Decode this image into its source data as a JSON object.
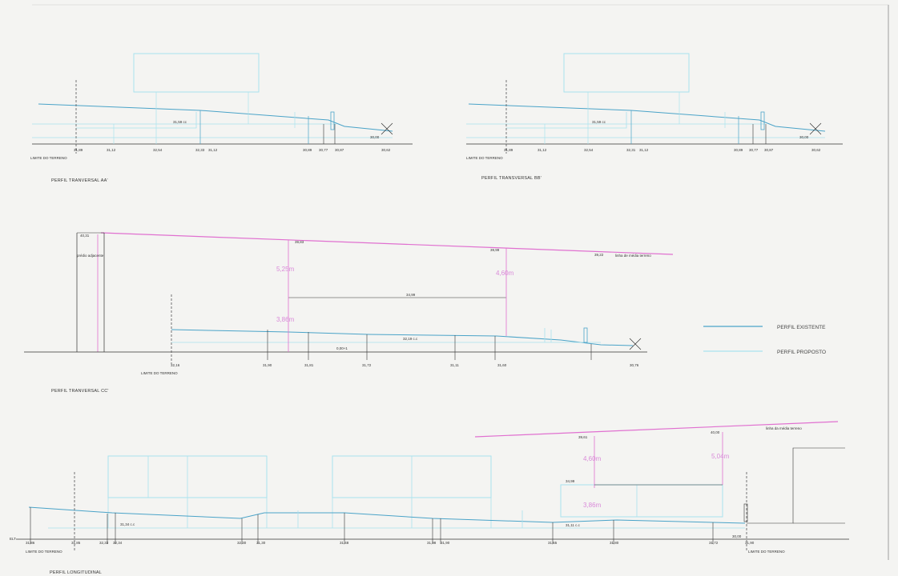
{
  "colors": {
    "existing": "#4aa3c8",
    "proposed": "#a9e2ee",
    "line_of_half": "#e070d0",
    "dim": "#d98ad9",
    "ink": "#333333"
  },
  "legend": {
    "existing": "PERFIL EXISTENTE",
    "proposed": "PERFIL PROPOSTO"
  },
  "sections": {
    "aa": {
      "title": "PERFIL TRANVERSAL AA'",
      "limit": "LIMITE DO TERRENO",
      "level_mid": "31,59 cc",
      "level_end": "30,00",
      "levels": [
        "31,89",
        "31,12",
        "32,54",
        "32,33",
        "31,12",
        "30,89",
        "30,77",
        "30,87",
        "30,62"
      ]
    },
    "bb": {
      "title": "PERFIL TRANSVERSAL BB'",
      "limit": "LIMITE DO TERRENO",
      "level_mid": "31,59 cc",
      "level_end": "30,00",
      "levels": [
        "31,89",
        "31,12",
        "32,54",
        "32,31",
        "31,12",
        "30,89",
        "30,77",
        "30,87",
        "30,62"
      ]
    },
    "cc": {
      "title": "PERFIL TRANVERSAL CC'",
      "limit": "LIMITE DO TERRENO",
      "top_left": "40,31",
      "neighbor_building": "prédio adjacente",
      "half_line_label": "linha de média terreno",
      "tops": [
        "39,83",
        "39,99",
        "39,22"
      ],
      "dims": [
        "5,25m",
        "4,60m",
        "3,86m"
      ],
      "mid_level": "34,99",
      "floor_level": "32,19 c.c",
      "small_note": "0,00+1",
      "levels": [
        "32,16",
        "31,90",
        "31,81",
        "31,72",
        "31,11",
        "31,60",
        "30,76"
      ]
    },
    "long": {
      "title": "PERFIL LONGITUDINAL",
      "limit_left": "LIMITE DO TERRENO",
      "limit_right": "LIMITE DO TERRENO",
      "half_line_label": "linha da média terreno",
      "tops": [
        "39,61",
        "40,00"
      ],
      "dims": [
        "4,60m",
        "5,04m",
        "3,86m"
      ],
      "mid_level": "34,99",
      "level_a": "31,34 c.c",
      "level_b": "31,11 c.c",
      "level_end": "30,00",
      "left_tag": "ELT",
      "levels": [
        "31,86",
        "31,85",
        "32,33",
        "32,34",
        "32,30",
        "31,30",
        "31,48",
        "31,98",
        "31,90",
        "31,65",
        "31,80",
        "31,72",
        "31,90"
      ]
    }
  }
}
